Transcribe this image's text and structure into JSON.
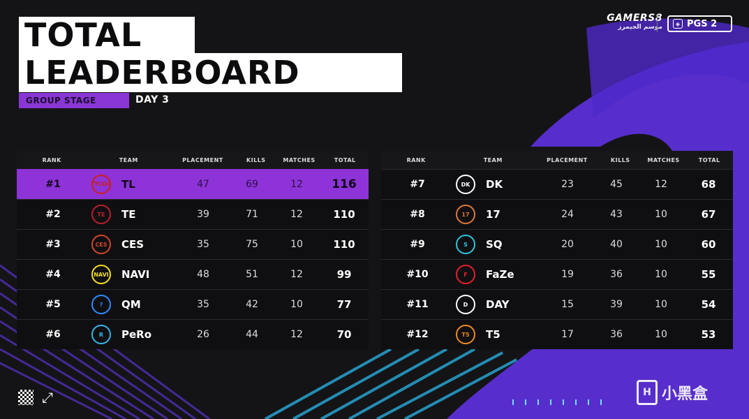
{
  "header": {
    "title_line1": "TOTAL",
    "title_line2": "LEADERBOARD",
    "stage": "GROUP STAGE",
    "day": "DAY 3"
  },
  "brand": {
    "name": "GAMERS8",
    "sub": "موسم الجيمرز",
    "event": "PGS 2"
  },
  "columns": {
    "rank": "RANK",
    "team": "TEAM",
    "placement": "PLACEMENT",
    "kills": "KILLS",
    "matches": "MATCHES",
    "total": "TOTAL"
  },
  "left_rows": [
    {
      "rank": "#1",
      "team": "TL",
      "placement": "47",
      "kills": "69",
      "matches": "12",
      "total": "116",
      "logo": "TYLOO",
      "logo_color": "#c8201e"
    },
    {
      "rank": "#2",
      "team": "TE",
      "placement": "39",
      "kills": "71",
      "matches": "12",
      "total": "110",
      "logo": "TE",
      "logo_color": "#b8202a"
    },
    {
      "rank": "#3",
      "team": "CES",
      "placement": "35",
      "kills": "75",
      "matches": "10",
      "total": "110",
      "logo": "CES",
      "logo_color": "#d2452a"
    },
    {
      "rank": "#4",
      "team": "NAVI",
      "placement": "48",
      "kills": "51",
      "matches": "12",
      "total": "99",
      "logo": "NAVI",
      "logo_color": "#f5e020"
    },
    {
      "rank": "#5",
      "team": "QM",
      "placement": "35",
      "kills": "42",
      "matches": "10",
      "total": "77",
      "logo": "?",
      "logo_color": "#2d8cff"
    },
    {
      "rank": "#6",
      "team": "PeRo",
      "placement": "26",
      "kills": "44",
      "matches": "12",
      "total": "70",
      "logo": "R",
      "logo_color": "#35b6e8"
    }
  ],
  "right_rows": [
    {
      "rank": "#7",
      "team": "DK",
      "placement": "23",
      "kills": "45",
      "matches": "12",
      "total": "68",
      "logo": "DK",
      "logo_color": "#ffffff"
    },
    {
      "rank": "#8",
      "team": "17",
      "placement": "24",
      "kills": "43",
      "matches": "10",
      "total": "67",
      "logo": "17",
      "logo_color": "#e0773a"
    },
    {
      "rank": "#9",
      "team": "SQ",
      "placement": "20",
      "kills": "40",
      "matches": "10",
      "total": "60",
      "logo": "S",
      "logo_color": "#2cc6dc"
    },
    {
      "rank": "#10",
      "team": "FaZe",
      "placement": "19",
      "kills": "36",
      "matches": "10",
      "total": "55",
      "logo": "F",
      "logo_color": "#e6202a"
    },
    {
      "rank": "#11",
      "team": "DAY",
      "placement": "15",
      "kills": "39",
      "matches": "10",
      "total": "54",
      "logo": "D",
      "logo_color": "#ffffff"
    },
    {
      "rank": "#12",
      "team": "T5",
      "placement": "17",
      "kills": "36",
      "matches": "10",
      "total": "53",
      "logo": "T5",
      "logo_color": "#f08a1e"
    }
  ],
  "watermark": {
    "text": "小黑盒"
  }
}
